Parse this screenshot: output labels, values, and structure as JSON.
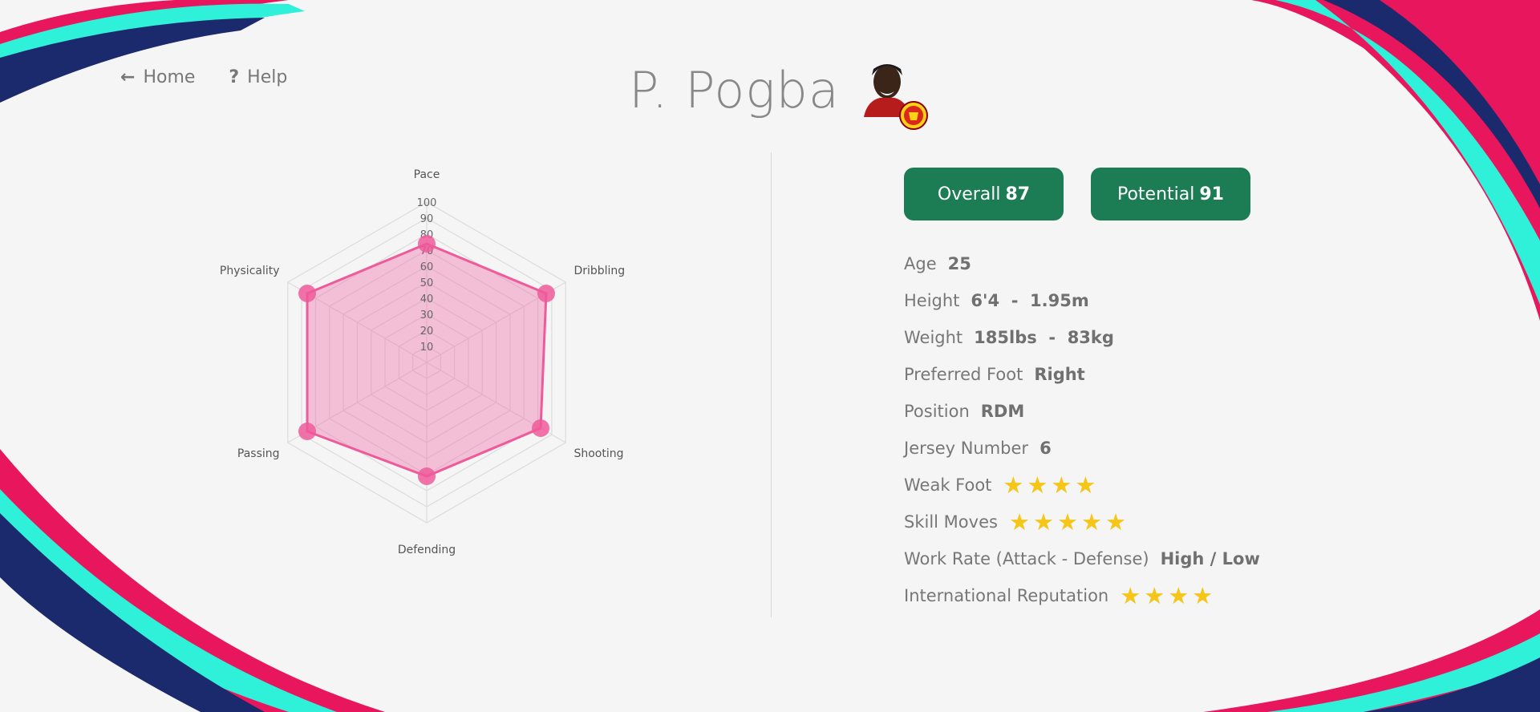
{
  "nav": {
    "home_label": "Home",
    "help_label": "Help",
    "home_icon": "arrow-left-icon",
    "help_icon": "question-icon"
  },
  "player": {
    "name": "P. Pogba",
    "photo": "player-photo",
    "club_badge": "manchester-united-badge"
  },
  "ratings": {
    "overall_label": "Overall",
    "overall": "87",
    "potential_label": "Potential",
    "potential": "91",
    "color": "#1c7c54"
  },
  "info": {
    "age_label": "Age",
    "age": "25",
    "height_label": "Height",
    "height": "6'4  -  1.95m",
    "weight_label": "Weight",
    "weight": "185lbs  -  83kg",
    "foot_label": "Preferred Foot",
    "foot": "Right",
    "position_label": "Position",
    "position": "RDM",
    "jersey_label": "Jersey Number",
    "jersey": "6",
    "weak_foot_label": "Weak Foot",
    "weak_foot_stars": 4,
    "skill_moves_label": "Skill Moves",
    "skill_moves_stars": 5,
    "work_rate_label": "Work Rate (Attack - Defense)",
    "work_rate": "High / Low",
    "reputation_label": "International Reputation",
    "reputation_stars": 4,
    "star_color": "#f5c518"
  },
  "chart_data": {
    "type": "radar",
    "categories": [
      "Pace",
      "Dribbling",
      "Shooting",
      "Defending",
      "Passing",
      "Physicality"
    ],
    "values": [
      74,
      86,
      82,
      71,
      86,
      86
    ],
    "ticks": [
      10,
      20,
      30,
      40,
      50,
      60,
      70,
      80,
      90,
      100
    ],
    "range": [
      0,
      100
    ],
    "fill_color": "#f06ea9",
    "line_color": "#ee5a9a",
    "grid": true
  }
}
